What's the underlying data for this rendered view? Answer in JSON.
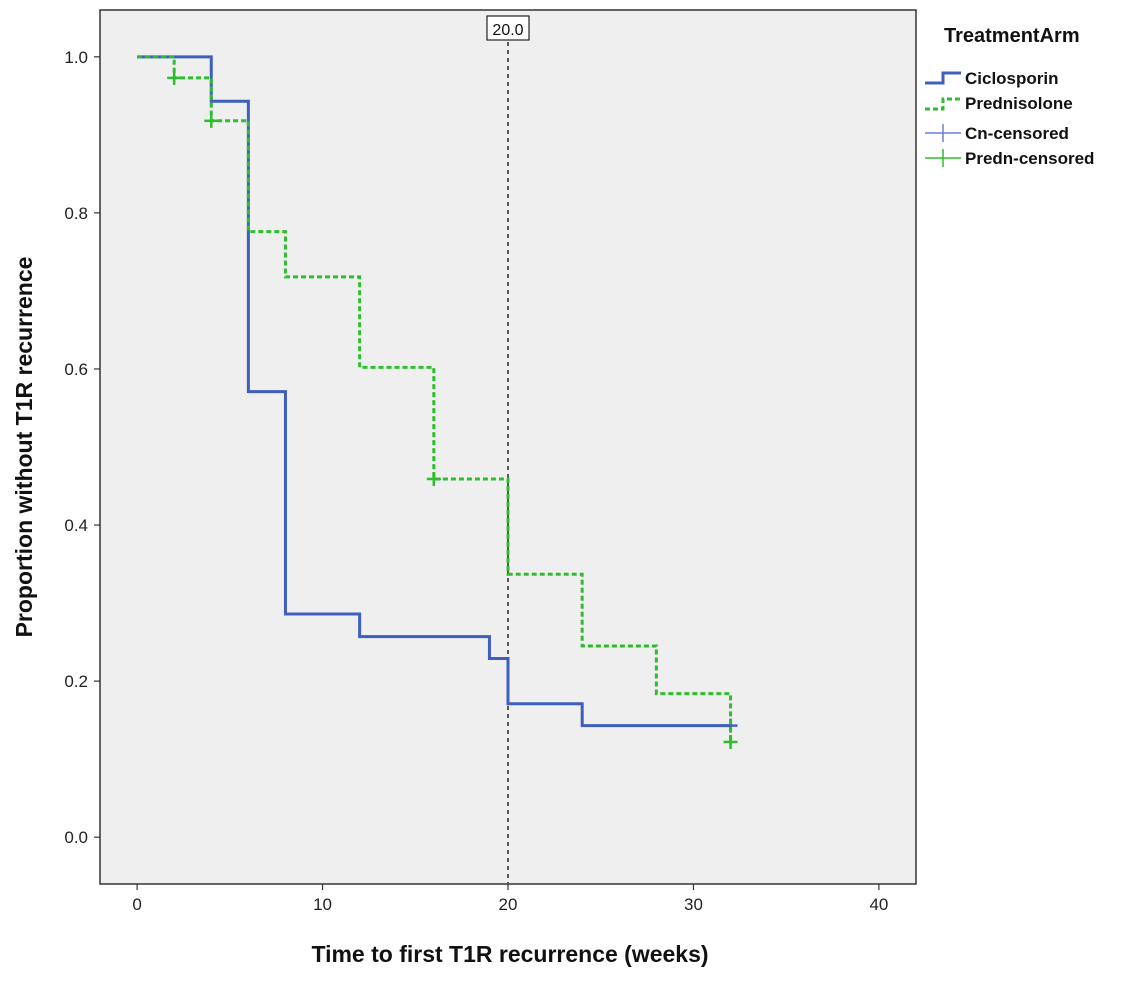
{
  "chart_data": {
    "type": "line",
    "subtype": "kaplan-meier-step",
    "xlabel": "Time to first T1R recurrence (weeks)",
    "ylabel": "Proportion without T1R recurrence",
    "xlim": [
      -2,
      42
    ],
    "ylim": [
      -0.06,
      1.06
    ],
    "xticks": [
      0,
      10,
      20,
      30,
      40
    ],
    "yticks": [
      0.0,
      0.2,
      0.4,
      0.6,
      0.8,
      1.0
    ],
    "xtick_labels": [
      "0",
      "10",
      "20",
      "30",
      "40"
    ],
    "ytick_labels": [
      "0.0",
      "0.2",
      "0.4",
      "0.6",
      "0.8",
      "1.0"
    ],
    "background": "#efefef",
    "grid": false,
    "reference_line": {
      "x": 20,
      "label": "20.0",
      "color": "#555555"
    },
    "legend": {
      "title": "TreatmentArm",
      "placement": "right",
      "entries": [
        {
          "label": "Ciclosporin",
          "style": "solid",
          "color": "#3f5fbf"
        },
        {
          "label": "Prednisolone",
          "style": "dashed",
          "color": "#2ebd2e"
        },
        {
          "label": "Cn-censored",
          "style": "censor",
          "color": "#6b7fd4"
        },
        {
          "label": "Predn-censored",
          "style": "censor",
          "color": "#2ebd2e"
        }
      ]
    },
    "series": [
      {
        "name": "Ciclosporin",
        "color": "#3f5fbf",
        "style": "solid",
        "steps": [
          [
            0,
            1.0
          ],
          [
            4,
            0.943
          ],
          [
            6,
            0.571
          ],
          [
            8,
            0.286
          ],
          [
            12,
            0.257
          ],
          [
            19,
            0.229
          ],
          [
            20,
            0.171
          ],
          [
            24,
            0.143
          ],
          [
            32,
            0.143
          ]
        ],
        "censored": [
          [
            32,
            0.143
          ]
        ]
      },
      {
        "name": "Prednisolone",
        "color": "#2ebd2e",
        "style": "dashed",
        "steps": [
          [
            0,
            1.0
          ],
          [
            2,
            0.973
          ],
          [
            4,
            0.918
          ],
          [
            6,
            0.776
          ],
          [
            8,
            0.718
          ],
          [
            12,
            0.602
          ],
          [
            16,
            0.459
          ],
          [
            20,
            0.337
          ],
          [
            24,
            0.245
          ],
          [
            28,
            0.184
          ],
          [
            32,
            0.122
          ]
        ],
        "censored": [
          [
            2,
            0.973
          ],
          [
            4,
            0.918
          ],
          [
            16,
            0.459
          ],
          [
            32,
            0.122
          ]
        ]
      }
    ]
  }
}
